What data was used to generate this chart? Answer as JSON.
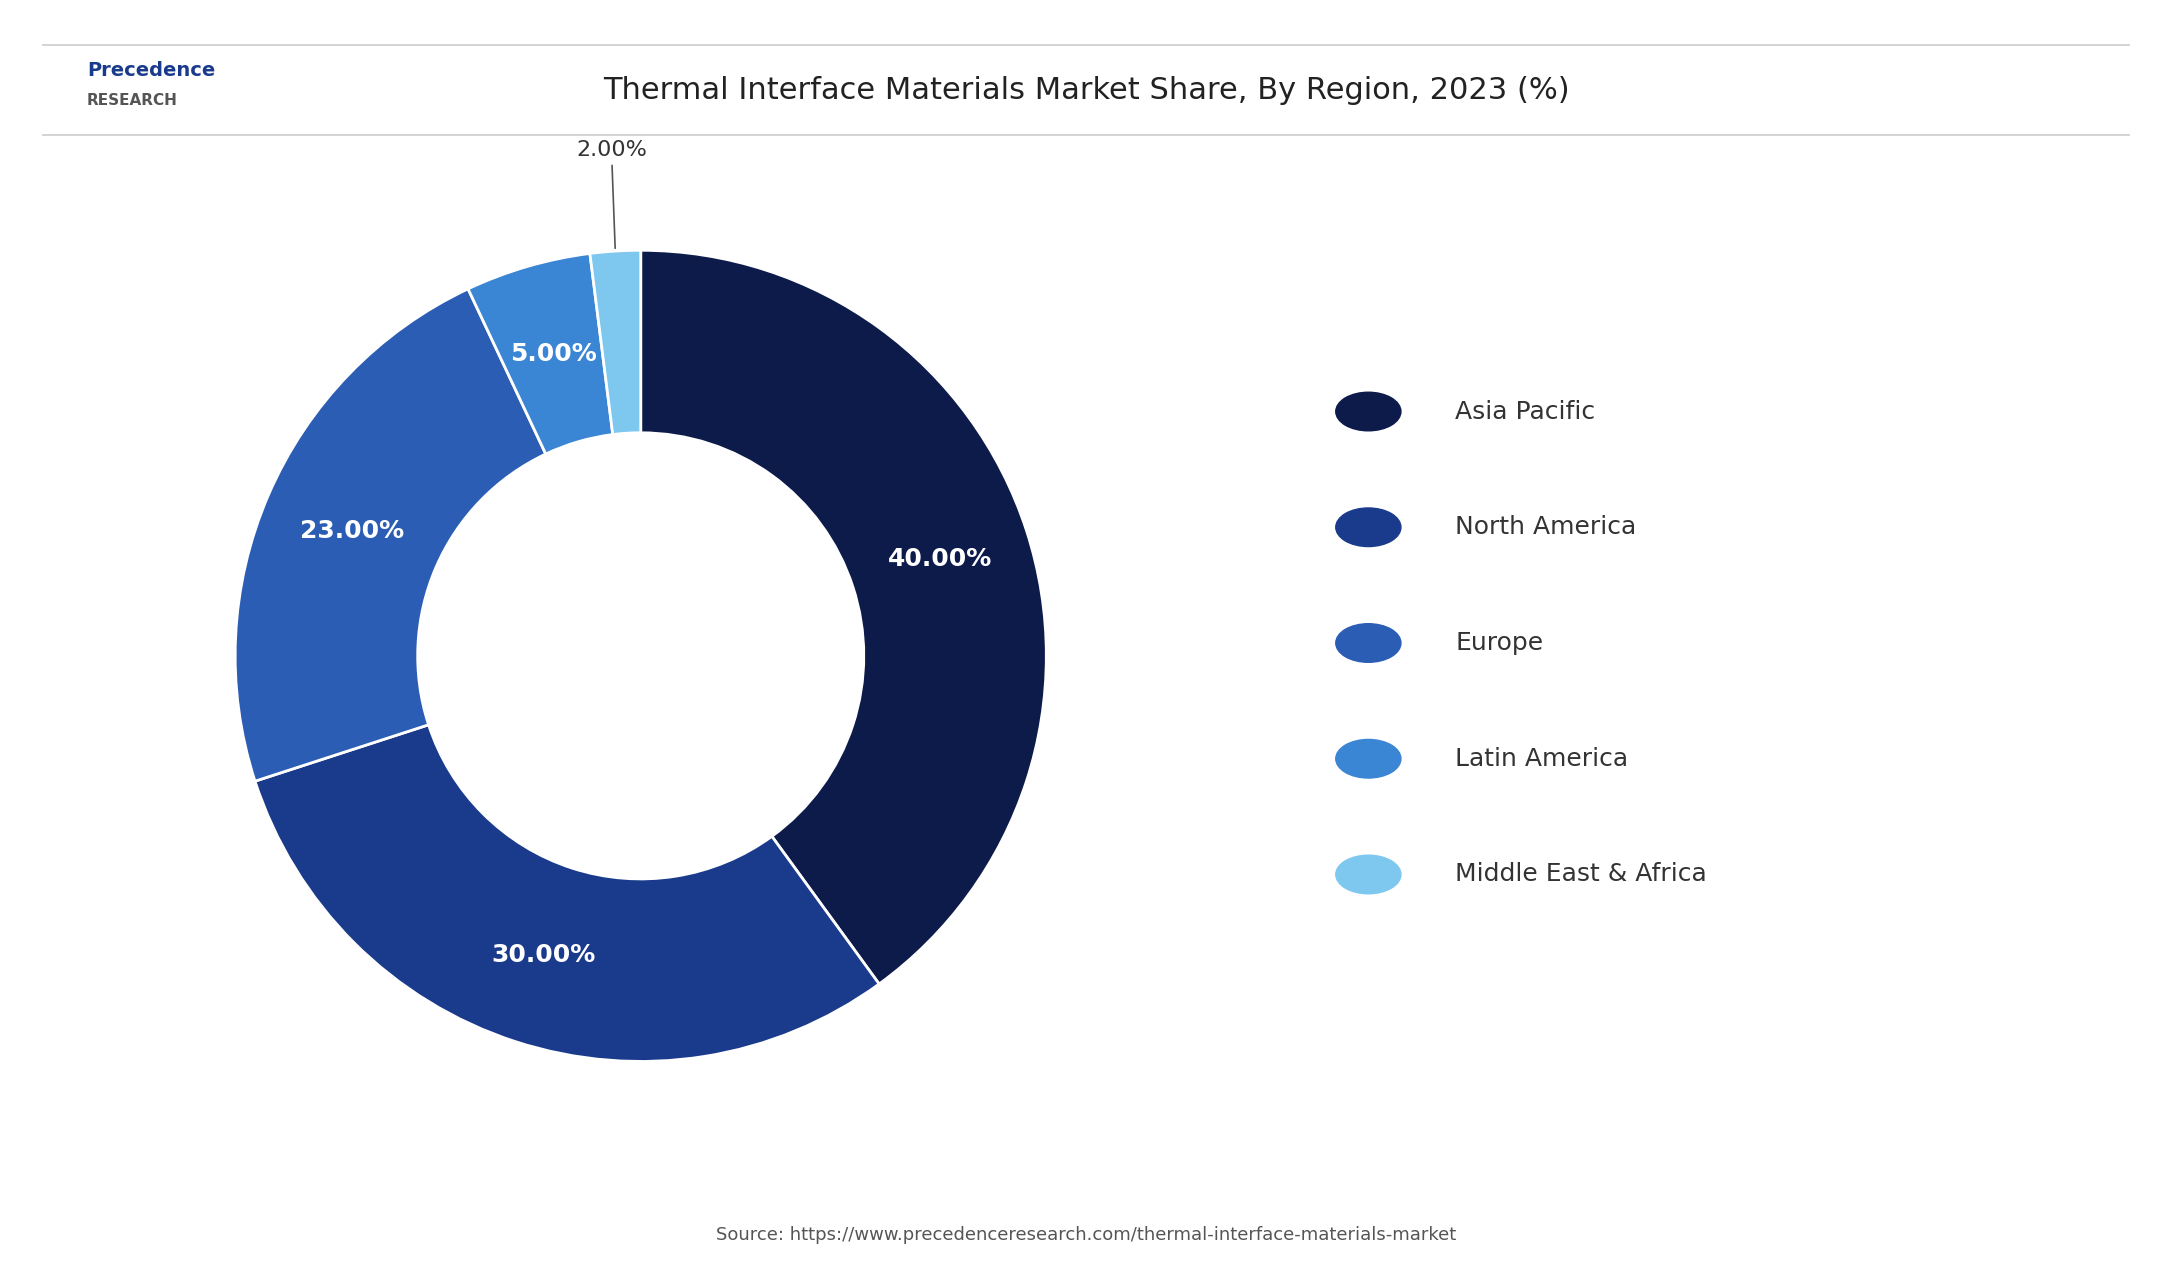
{
  "title": "Thermal Interface Materials Market Share, By Region, 2023 (%)",
  "segments": [
    {
      "label": "Asia Pacific",
      "value": 40,
      "pct_label": "40.00%",
      "color": "#0d1b4b"
    },
    {
      "label": "North America",
      "value": 30,
      "pct_label": "30.00%",
      "color": "#1a3a8c"
    },
    {
      "label": "Europe",
      "value": 23,
      "pct_label": "23.00%",
      "color": "#2b5db5"
    },
    {
      "label": "Latin America",
      "value": 5,
      "pct_label": "5.00%",
      "color": "#3a85d4"
    },
    {
      "label": "Middle East & Africa",
      "value": 2,
      "pct_label": "2.00%",
      "color": "#7ec8f0"
    }
  ],
  "start_angle": 90,
  "bg_color": "#ffffff",
  "text_color_white": "#ffffff",
  "label_color": "#333333",
  "title_fontsize": 22,
  "label_fontsize": 18,
  "legend_fontsize": 18,
  "source_text": "Source: https://www.precedenceresearch.com/thermal-interface-materials-market",
  "logo_line1": "Precedence",
  "logo_line2": "RESEARCH"
}
